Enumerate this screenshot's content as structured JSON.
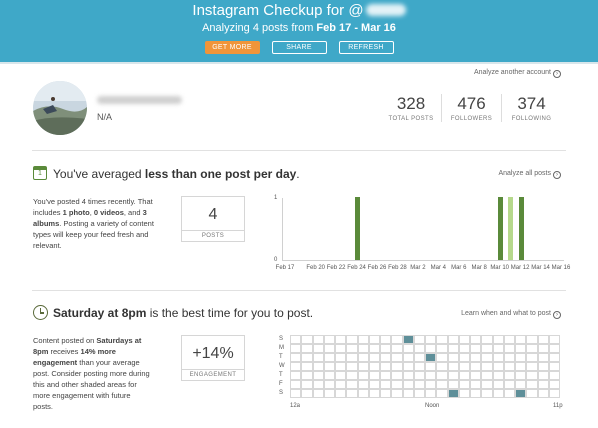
{
  "header": {
    "title": "Instagram Checkup for @",
    "subtitle_prefix": "Analyzing 4 posts from ",
    "subtitle_range": "Feb 17 - Mar 16",
    "buttons": {
      "get_more": "GET MORE",
      "share": "SHARE",
      "refresh": "REFRESH"
    },
    "colors": {
      "background": "#3fa8c8",
      "get_more": "#f0953a"
    }
  },
  "profile": {
    "analyze_another": "Analyze another account",
    "bio": "N/A",
    "stats": [
      {
        "value": "328",
        "label": "TOTAL POSTS"
      },
      {
        "value": "476",
        "label": "FOLLOWERS"
      },
      {
        "value": "374",
        "label": "FOLLOWING"
      }
    ]
  },
  "posting_frequency": {
    "headline_prefix": "You've averaged ",
    "headline_bold": "less than one post per day",
    "headline_suffix": ".",
    "link": "Analyze all posts",
    "desc_1": "You've posted 4 times recently. That includes ",
    "desc_photo": "1 photo",
    "desc_sep1": ", ",
    "desc_video": "0 videos",
    "desc_sep2": ", and ",
    "desc_album": "3 albums",
    "desc_2": ". Posting a variety of content types will keep your feed fresh and relevant.",
    "box_value": "4",
    "box_label": "POSTS",
    "chart_data": {
      "type": "bar",
      "ylim": [
        0,
        1
      ],
      "yticks": [
        "1",
        "0"
      ],
      "x_ticks": [
        "Feb 17",
        "Feb 20",
        "Feb 22",
        "Feb 24",
        "Feb 26",
        "Feb 28",
        "Mar 2",
        "Mar 4",
        "Mar 6",
        "Mar 8",
        "Mar 10",
        "Mar 12",
        "Mar 14",
        "Mar 16"
      ],
      "categories": [
        "Feb 17",
        "Feb 18",
        "Feb 19",
        "Feb 20",
        "Feb 21",
        "Feb 22",
        "Feb 23",
        "Feb 24",
        "Feb 25",
        "Feb 26",
        "Feb 27",
        "Feb 28",
        "Mar 1",
        "Mar 2",
        "Mar 3",
        "Mar 4",
        "Mar 5",
        "Mar 6",
        "Mar 7",
        "Mar 8",
        "Mar 9",
        "Mar 10",
        "Mar 11",
        "Mar 12",
        "Mar 13",
        "Mar 14",
        "Mar 15",
        "Mar 16"
      ],
      "values": [
        0,
        0,
        0,
        0,
        0,
        0,
        0,
        1,
        0,
        0,
        0,
        0,
        0,
        0,
        0,
        0,
        0,
        0,
        0,
        0,
        0,
        1,
        1,
        1,
        0,
        0,
        0,
        0
      ],
      "bar_colors": {
        "Mar 10": "#5a8a3a",
        "Mar 11": "#b6d98c",
        "Mar 12": "#5a8a3a",
        "Feb 24": "#5a8a3a"
      }
    }
  },
  "best_time": {
    "headline_bold": "Saturday at 8pm",
    "headline_rest": " is the best time for you to post.",
    "link": "Learn when and what to post",
    "desc_1": "Content posted on ",
    "desc_bold1": "Saturdays at 8pm",
    "desc_2": " receives ",
    "desc_bold2": "14% more engagement",
    "desc_3": " than your average post. Consider posting more during this and other shaded areas for more engagement with future posts.",
    "box_value": "+14%",
    "box_label": "ENGAGEMENT",
    "chart_data": {
      "type": "heatmap",
      "rows": [
        "S",
        "M",
        "T",
        "W",
        "T",
        "F",
        "S"
      ],
      "x_ticks": [
        "12a",
        "Noon",
        "11p"
      ],
      "columns": 24,
      "cells": [
        {
          "row": 0,
          "col": 10,
          "value": 1
        },
        {
          "row": 2,
          "col": 12,
          "value": 1
        },
        {
          "row": 6,
          "col": 14,
          "value": 1
        },
        {
          "row": 6,
          "col": 20,
          "value": 1
        }
      ],
      "color": "#5e8f99"
    }
  }
}
